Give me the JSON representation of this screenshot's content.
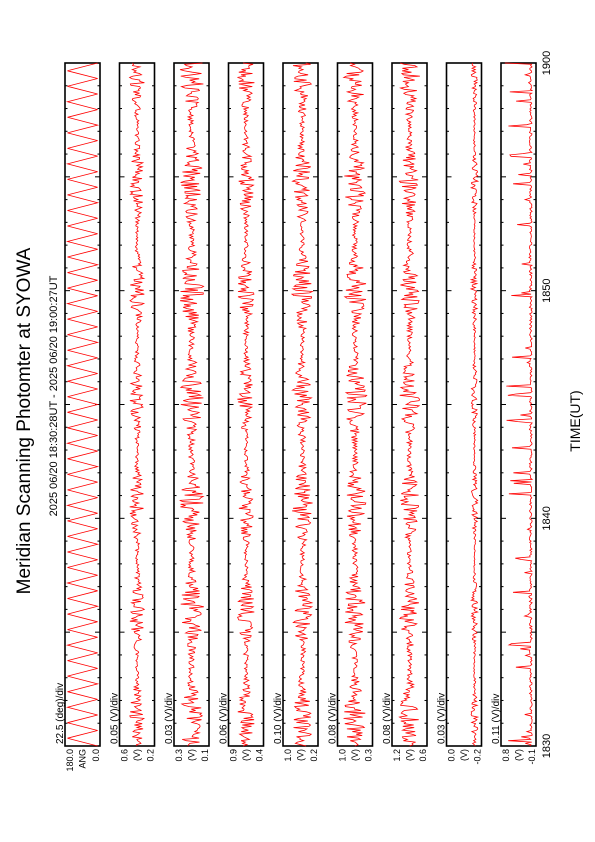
{
  "chart_data": {
    "type": "line",
    "title": "Meridian Scanning Photomter at SYOWA",
    "subtitle": "2025 06/20 18:30:28UT - 2025 06/20 19:00:27UT",
    "xlabel": "TIME(UT)",
    "xlim": [
      1830,
      1900
    ],
    "x_ticks": [
      "1830",
      "1840",
      "1850",
      "1900"
    ],
    "series_color": "#ff0000",
    "panels": [
      {
        "id": "angle",
        "scale": "22.5 (deg)/div",
        "unit": "ANG",
        "ylim": [
          0.0,
          180.0
        ],
        "tick_top": "180.0",
        "tick_bottom": "0.0",
        "pattern": "scan",
        "amplitude": 0.95
      },
      {
        "id": "ch2",
        "scale": "0.05 (V)/div",
        "unit": "(V)",
        "ylim": [
          0.2,
          0.6
        ],
        "tick_top": "0.6",
        "tick_bottom": "0.2",
        "pattern": "noise",
        "level": 0.5,
        "amplitude": 0.22
      },
      {
        "id": "ch3",
        "scale": "0.03 (V)/div",
        "unit": "(V)",
        "ylim": [
          0.1,
          0.3
        ],
        "tick_top": "0.3",
        "tick_bottom": "0.1",
        "pattern": "noise",
        "level": 0.5,
        "amplitude": 0.36
      },
      {
        "id": "ch4",
        "scale": "0.06 (V)/div",
        "unit": "(V)",
        "ylim": [
          0.4,
          0.9
        ],
        "tick_top": "0.9",
        "tick_bottom": "0.4",
        "pattern": "noise",
        "level": 0.5,
        "amplitude": 0.25
      },
      {
        "id": "ch5",
        "scale": "0.10 (V)/div",
        "unit": "(V)",
        "ylim": [
          0.2,
          1.0
        ],
        "tick_top": "1.0",
        "tick_bottom": "0.2",
        "pattern": "noise",
        "level": 0.45,
        "amplitude": 0.3
      },
      {
        "id": "ch6",
        "scale": "0.08 (V)/div",
        "unit": "(V)",
        "ylim": [
          0.3,
          1.0
        ],
        "tick_top": "1.0",
        "tick_bottom": "0.3",
        "pattern": "noise",
        "level": 0.5,
        "amplitude": 0.34
      },
      {
        "id": "ch7",
        "scale": "0.08 (V)/div",
        "unit": "(V)",
        "ylim": [
          0.6,
          1.2
        ],
        "tick_top": "1.2",
        "tick_bottom": "0.6",
        "pattern": "noise",
        "level": 0.5,
        "amplitude": 0.3
      },
      {
        "id": "ch8",
        "scale": "0.03 (V)/div",
        "unit": "(V)",
        "ylim": [
          -0.2,
          0.0
        ],
        "tick_top": "0.0",
        "tick_bottom": "-0.2",
        "pattern": "low",
        "level": 0.2,
        "amplitude": 0.1
      },
      {
        "id": "ch9",
        "scale": "0.11 (V)/div",
        "unit": "(V)",
        "ylim": [
          -0.1,
          0.8
        ],
        "tick_top": "0.8",
        "tick_bottom": "-0.1",
        "pattern": "spikes",
        "level": 0.15,
        "amplitude": 0.75
      }
    ]
  }
}
